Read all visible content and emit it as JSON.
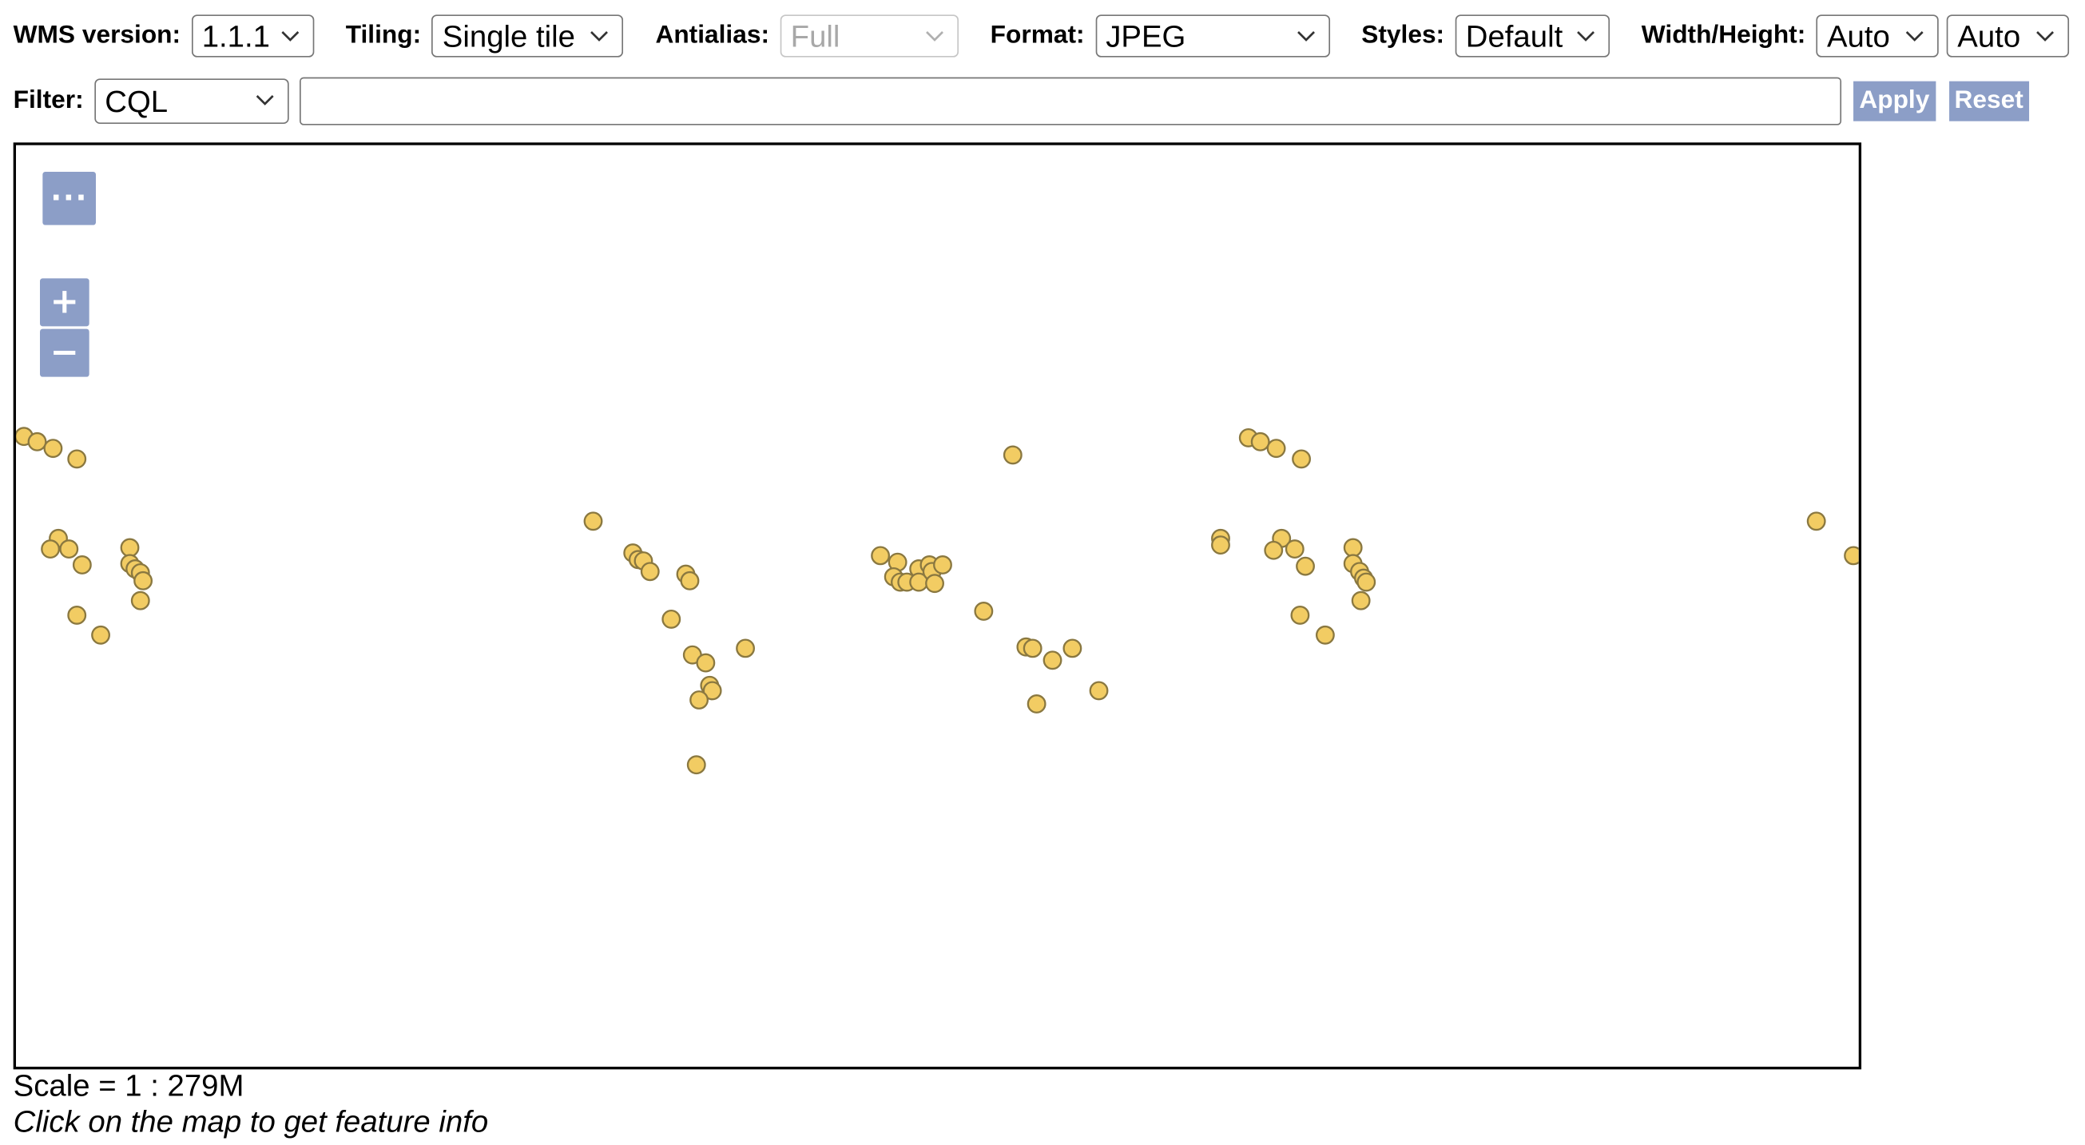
{
  "toolbar": {
    "wms_version": {
      "label": "WMS version:",
      "value": "1.1.1"
    },
    "tiling": {
      "label": "Tiling:",
      "value": "Single tile"
    },
    "antialias": {
      "label": "Antialias:",
      "value": "Full",
      "disabled": true
    },
    "format": {
      "label": "Format:",
      "value": "JPEG"
    },
    "styles": {
      "label": "Styles:",
      "value": "Default"
    },
    "width_height": {
      "label": "Width/Height:",
      "width_value": "Auto",
      "height_value": "Auto"
    }
  },
  "filter": {
    "label": "Filter:",
    "type_value": "CQL",
    "expression_value": "",
    "apply_label": "Apply",
    "reset_label": "Reset"
  },
  "map": {
    "more_label": "···",
    "zoom_in_label": "+",
    "zoom_out_label": "−",
    "point_fill": "#f2cc63",
    "point_stroke": "#8a7840"
  },
  "status": {
    "scale": "Scale = 1 : 279M",
    "hint": "Click on the map to get feature info"
  },
  "colors": {
    "button_bg": "#8c9ec7",
    "border": "#767676",
    "disabled_text": "#a8a8a8"
  },
  "icons": [
    "chevron-down-icon",
    "more-icon",
    "zoom-in-icon",
    "zoom-out-icon"
  ]
}
